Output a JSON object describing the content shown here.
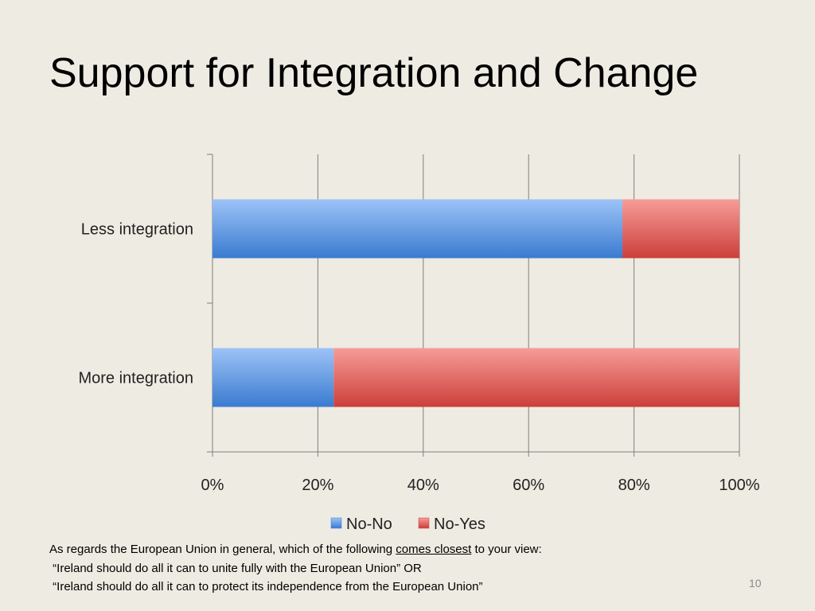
{
  "slide": {
    "title": "Support for Integration and Change",
    "number": "10",
    "caption": {
      "line1_before": "As regards the European Union in general, which of the following ",
      "line1_underlined": "comes closest",
      "line1_after": " to your view:",
      "line2": " “Ireland should do all it can to unite fully with the European Union” OR",
      "line3": " “Ireland should do all it can to protect its independence from the European Union”"
    }
  },
  "colors": {
    "no_no_light": "#9dc3f7",
    "no_no_dark": "#3a7bd0",
    "no_yes_light": "#f79c98",
    "no_yes_dark": "#cc3f3a",
    "gridline": "#7f7f7f"
  },
  "chart_data": {
    "type": "bar",
    "orientation": "horizontal",
    "stacked": "percent",
    "categories": [
      "Less integration",
      "More integration"
    ],
    "series": [
      {
        "name": "No-No",
        "values": [
          77.8,
          23.0
        ],
        "color": "#4a8ad8"
      },
      {
        "name": "No-Yes",
        "values": [
          22.2,
          77.0
        ],
        "color": "#d9504a"
      }
    ],
    "xlim": [
      0,
      100
    ],
    "x_ticks": [
      "0%",
      "20%",
      "40%",
      "60%",
      "80%",
      "100%"
    ],
    "grid": true,
    "legend": "bottom",
    "title": "",
    "xlabel": "",
    "ylabel": ""
  }
}
